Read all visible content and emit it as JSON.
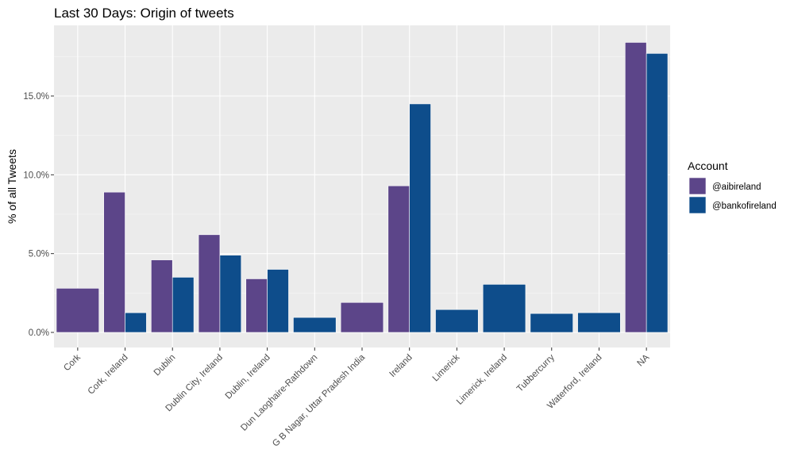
{
  "chart_data": {
    "type": "bar",
    "title": "Last 30 Days: Origin of tweets",
    "xlabel": "",
    "ylabel": "% of all Tweets",
    "ylim": [
      0,
      19.1
    ],
    "yticks": [
      0,
      5,
      10,
      15
    ],
    "ytick_labels": [
      "0.0%",
      "5.0%",
      "10.0%",
      "15.0%"
    ],
    "grid": true,
    "legend_position": "right",
    "legend_title": "Account",
    "categories": [
      "Cork",
      "Cork, Ireland",
      "Dublin",
      "Dublin City, Ireland",
      "Dublin, Ireland",
      "Dun Laoghaire-Rathdown",
      "G B Nagar, Uttar Pradesh India",
      "Ireland",
      "Limerick",
      "Limerick, Ireland",
      "Tubbercurry",
      "Waterford, Ireland",
      "NA"
    ],
    "series": [
      {
        "name": "@aibireland",
        "color": "#5c4589",
        "values": [
          2.8,
          8.9,
          4.6,
          6.2,
          3.4,
          null,
          1.9,
          9.3,
          null,
          null,
          null,
          null,
          18.4
        ]
      },
      {
        "name": "@bankofireland",
        "color": "#0e4d8b",
        "values": [
          null,
          1.25,
          3.5,
          4.9,
          4.0,
          0.95,
          null,
          14.5,
          1.45,
          3.05,
          1.2,
          1.25,
          17.7
        ]
      }
    ]
  }
}
